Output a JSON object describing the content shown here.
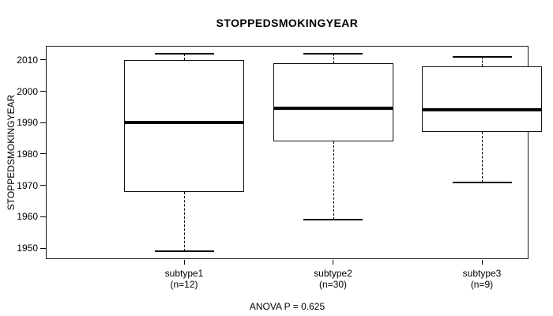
{
  "chart_data": {
    "type": "boxplot",
    "title": "STOPPEDSMOKINGYEAR",
    "ylabel": "STOPPEDSMOKINGYEAR",
    "annotation": "ANOVA P = 0.625",
    "ylim": [
      1946.5,
      2014.5
    ],
    "yticks": [
      1950,
      1960,
      1970,
      1980,
      1990,
      2000,
      2010
    ],
    "grid": false,
    "legend": "none",
    "groups": [
      {
        "label": "subtype1",
        "n": 12,
        "n_label": "(n=12)",
        "whisker_low": 1949,
        "q1": 1968,
        "median": 1990,
        "q3": 2010,
        "whisker_high": 2012
      },
      {
        "label": "subtype2",
        "n": 30,
        "n_label": "(n=30)",
        "whisker_low": 1959,
        "q1": 1984,
        "median": 1994.5,
        "q3": 2009,
        "whisker_high": 2012
      },
      {
        "label": "subtype3",
        "n": 9,
        "n_label": "(n=9)",
        "whisker_low": 1971,
        "q1": 1987,
        "median": 1994,
        "q3": 2008,
        "whisker_high": 2011
      }
    ],
    "colors": {
      "line": "#000000",
      "background": "#ffffff"
    }
  }
}
